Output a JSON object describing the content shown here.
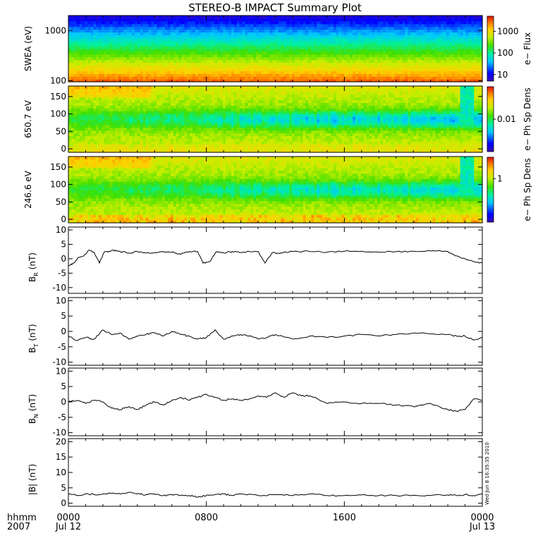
{
  "title": "STEREO-B IMPACT Summary Plot",
  "side_stamp": "Wed Jun  8 16:35:35 2010",
  "time_axis": {
    "row_labels": [
      "hhmm",
      "2007"
    ],
    "range_hours": [
      0,
      24
    ],
    "ticks": [
      {
        "hour": 0,
        "label": "0000",
        "sublabel": "Jul 12"
      },
      {
        "hour": 8,
        "label": "0800",
        "sublabel": ""
      },
      {
        "hour": 16,
        "label": "1600",
        "sublabel": ""
      },
      {
        "hour": 24,
        "label": "0000",
        "sublabel": "Jul 13"
      }
    ]
  },
  "colors": {
    "line": "#000000",
    "frame": "#000000",
    "background": "#ffffff"
  },
  "chart_data": [
    {
      "type": "heatmap",
      "ylabel": "SWEA (eV)",
      "yscale": "log",
      "ylim": [
        95,
        2000
      ],
      "yticks": [
        {
          "v": 100,
          "t": "100"
        },
        {
          "v": 1000,
          "t": "1000"
        }
      ],
      "colorbar_label": "e− Flux",
      "colorbar_scale": "log",
      "colorbar_range": [
        5,
        5000
      ],
      "colorbar_ticks": [
        {
          "v": 10,
          "t": "10"
        },
        {
          "v": 100,
          "t": "100"
        },
        {
          "v": 1000,
          "t": "1000"
        }
      ],
      "description_profile": [
        {
          "energy": 100,
          "level": 0.9
        },
        {
          "energy": 150,
          "level": 0.78
        },
        {
          "energy": 250,
          "level": 0.6
        },
        {
          "energy": 400,
          "level": 0.48
        },
        {
          "energy": 700,
          "level": 0.35
        },
        {
          "energy": 1200,
          "level": 0.22
        },
        {
          "energy": 1800,
          "level": 0.06
        }
      ]
    },
    {
      "type": "heatmap",
      "ylabel": "650.7 eV",
      "ylim": [
        -10,
        180
      ],
      "yticks": [
        {
          "v": 0,
          "t": "0"
        },
        {
          "v": 50,
          "t": "50"
        },
        {
          "v": 100,
          "t": "100"
        },
        {
          "v": 150,
          "t": "150"
        }
      ],
      "colorbar_label": "e− Ph Sp Dens",
      "colorbar_ticks": [
        {
          "v": 0.5,
          "t": "0.01"
        }
      ],
      "pitch_angle_dip_center": 90
    },
    {
      "type": "heatmap",
      "ylabel": "246.6 eV",
      "ylim": [
        -10,
        180
      ],
      "yticks": [
        {
          "v": 0,
          "t": "0"
        },
        {
          "v": 50,
          "t": "50"
        },
        {
          "v": 100,
          "t": "100"
        },
        {
          "v": 150,
          "t": "150"
        }
      ],
      "colorbar_label": "e− Ph Sp Dens",
      "colorbar_ticks": [
        {
          "v": 0.67,
          "t": "1"
        }
      ],
      "pitch_angle_dip_center": 90
    },
    {
      "type": "line",
      "ylabel_main": "B",
      "ylabel_sub": "R",
      "ylabel_unit": "(nT)",
      "ylim": [
        -12,
        11
      ],
      "yticks": [
        -10,
        -5,
        0,
        5,
        10
      ],
      "x": [
        0,
        0.3,
        0.6,
        0.9,
        1.2,
        1.5,
        1.8,
        2.1,
        2.4,
        2.7,
        3,
        3.5,
        4,
        4.5,
        5,
        5.5,
        6,
        6.5,
        7,
        7.5,
        7.8,
        8.2,
        8.6,
        9,
        9.5,
        10,
        10.5,
        11,
        11.4,
        11.8,
        12.3,
        13,
        14,
        15,
        16,
        17,
        18,
        19,
        20,
        21,
        22,
        22.5,
        23,
        23.5,
        24
      ],
      "y": [
        -2.5,
        -1.5,
        0.5,
        1,
        3,
        2,
        -1.5,
        2.5,
        2.5,
        3,
        2.5,
        2,
        2.5,
        2,
        2.2,
        2.5,
        2.3,
        1.5,
        2.5,
        2.5,
        -1.5,
        -1,
        2.5,
        2,
        2.5,
        2.2,
        2.5,
        2.5,
        -1.5,
        2,
        2,
        2.5,
        2.5,
        2.3,
        2.6,
        2.6,
        2.3,
        2.5,
        2.6,
        2.7,
        2.5,
        1,
        0,
        -1,
        -1.5
      ]
    },
    {
      "type": "line",
      "ylabel_main": "B",
      "ylabel_sub": "T",
      "ylabel_unit": "(nT)",
      "ylim": [
        -11,
        11
      ],
      "yticks": [
        -10,
        -5,
        0,
        5,
        10
      ],
      "x": [
        0,
        0.5,
        1,
        1.5,
        2,
        2.5,
        3,
        3.5,
        4,
        4.5,
        5,
        5.5,
        6,
        6.5,
        7,
        7.5,
        8,
        8.5,
        9,
        9.5,
        10,
        10.5,
        11,
        11.5,
        12,
        13,
        14,
        15,
        16,
        17,
        18,
        19,
        20,
        21,
        22,
        22.5,
        23,
        23.5,
        24
      ],
      "y": [
        -1.5,
        -3,
        -2,
        -2.5,
        0.5,
        -1,
        -0.5,
        -2.5,
        -1.5,
        -1,
        -0.5,
        -1.5,
        0,
        -1,
        -1.5,
        -2.5,
        -2,
        0.5,
        -2.5,
        -1.5,
        -1,
        -1.5,
        -2.5,
        -2,
        -1,
        -2.5,
        -1.5,
        -2,
        -1.5,
        -1,
        -1.5,
        -1,
        -0.5,
        -0.8,
        -1,
        -1.5,
        -1.5,
        -2.8,
        -2
      ]
    },
    {
      "type": "line",
      "ylabel_main": "B",
      "ylabel_sub": "N",
      "ylabel_unit": "(nT)",
      "ylim": [
        -11,
        11
      ],
      "yticks": [
        -10,
        -5,
        0,
        5,
        10
      ],
      "x": [
        0,
        0.5,
        1,
        1.5,
        2,
        2.5,
        3,
        3.5,
        4,
        4.5,
        5,
        5.5,
        6,
        6.5,
        7,
        7.5,
        8,
        8.5,
        9,
        9.5,
        10,
        10.5,
        11,
        11.5,
        12,
        12.5,
        13,
        13.5,
        14,
        15,
        16,
        17,
        18,
        19,
        20,
        20.5,
        21,
        21.5,
        22,
        22.5,
        23,
        23.5,
        24
      ],
      "y": [
        0,
        0.5,
        -0.5,
        0.5,
        0,
        -2,
        -2.5,
        -1.5,
        -2.5,
        -1,
        0,
        -1,
        0.5,
        1.5,
        0.5,
        1.5,
        2.5,
        1.5,
        0.5,
        1,
        0.5,
        1,
        2,
        1.5,
        3,
        1.5,
        3,
        2,
        2,
        -0.5,
        0,
        -0.5,
        -0.5,
        -1,
        -1.5,
        -1,
        -0.5,
        -1.5,
        -2.5,
        -3,
        -2.5,
        1,
        0.5
      ]
    },
    {
      "type": "line",
      "ylabel_main": "|B|",
      "ylabel_sub": "",
      "ylabel_unit": "(nT)",
      "ylim": [
        -1,
        21
      ],
      "yticks": [
        0,
        5,
        10,
        15,
        20
      ],
      "x": [
        0,
        0.5,
        1,
        1.5,
        2,
        2.5,
        3,
        3.5,
        4,
        4.5,
        5,
        5.5,
        6,
        6.5,
        7,
        7.5,
        8,
        8.5,
        9,
        9.5,
        10,
        11,
        12,
        13,
        14,
        15,
        16,
        17,
        18,
        19,
        20,
        21,
        22,
        22.5,
        23,
        23.5,
        24
      ],
      "y": [
        3,
        2.5,
        3,
        2.8,
        3,
        3.2,
        3,
        3.5,
        3,
        2.8,
        3,
        2.5,
        2.8,
        2.5,
        2.5,
        2,
        2.5,
        2.8,
        3,
        2.5,
        3,
        2.5,
        2.8,
        2.5,
        3,
        2.5,
        2.5,
        2.7,
        2.5,
        2.5,
        2.6,
        2.5,
        2.7,
        2.5,
        2.8,
        2.5,
        3
      ]
    }
  ]
}
